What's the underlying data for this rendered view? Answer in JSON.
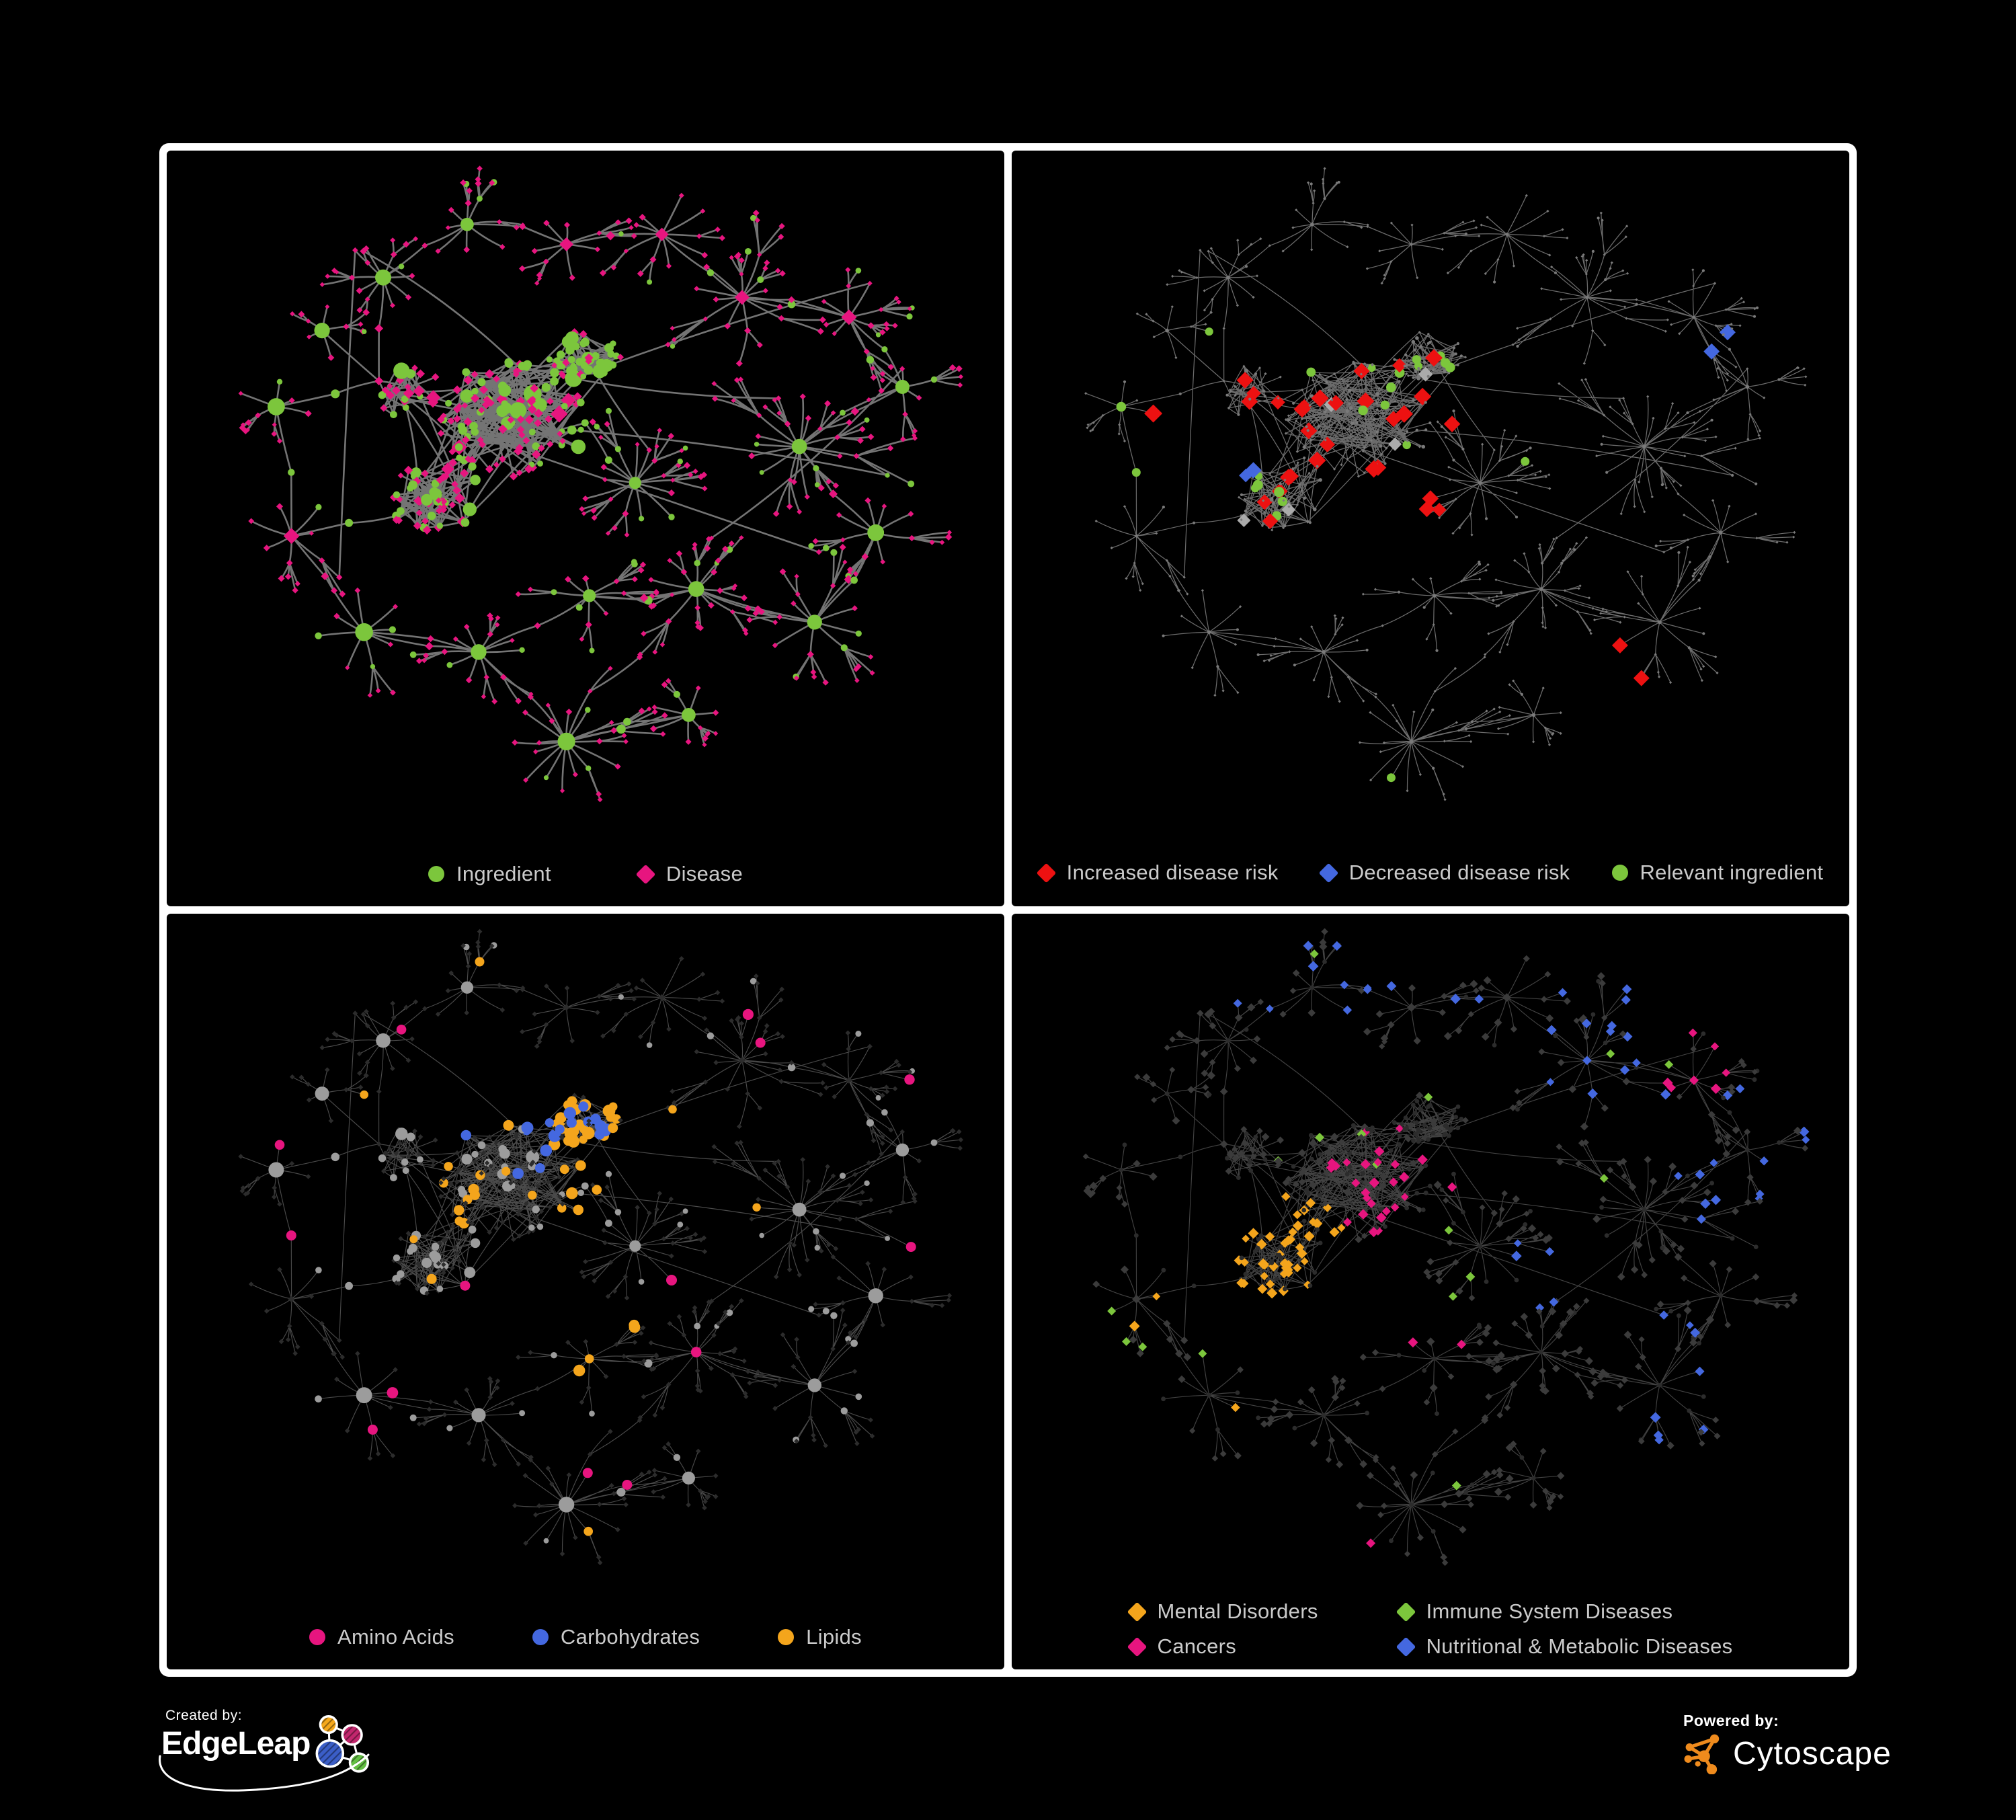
{
  "panels": [
    {
      "id": "ingredient-disease",
      "legend": [
        {
          "label": "Ingredient",
          "shape": "circle",
          "color": "#7cc63c"
        },
        {
          "label": "Disease",
          "shape": "diamond",
          "color": "#e7157f"
        }
      ]
    },
    {
      "id": "disease-risk",
      "legend": [
        {
          "label": "Increased disease risk",
          "shape": "diamond",
          "color": "#ed1111"
        },
        {
          "label": "Decreased disease risk",
          "shape": "diamond",
          "color": "#4468e0"
        },
        {
          "label": "Relevant ingredient",
          "shape": "circle",
          "color": "#7cc63c"
        }
      ]
    },
    {
      "id": "nutrient-classes",
      "legend": [
        {
          "label": "Amino Acids",
          "shape": "circle",
          "color": "#e7157f"
        },
        {
          "label": "Carbohydrates",
          "shape": "circle",
          "color": "#4468e0"
        },
        {
          "label": "Lipids",
          "shape": "circle",
          "color": "#f4a51c"
        }
      ]
    },
    {
      "id": "disease-classes",
      "legend": [
        {
          "label": "Mental Disorders",
          "shape": "diamond",
          "color": "#f4a51c"
        },
        {
          "label": "Immune System Diseases",
          "shape": "diamond",
          "color": "#7cc63c"
        },
        {
          "label": "Cancers",
          "shape": "diamond",
          "color": "#e7157f"
        },
        {
          "label": "Nutritional & Metabolic Diseases",
          "shape": "diamond",
          "color": "#4468e0"
        }
      ]
    }
  ],
  "footer": {
    "created_by_label": "Created by:",
    "created_by_brand": "EdgeLeap",
    "powered_by_label": "Powered by:",
    "powered_by_brand": "Cytoscape"
  },
  "colors": {
    "background": "#000000",
    "frame": "#ffffff",
    "legend_text": "#cbcbcb",
    "green": "#7cc63c",
    "pink": "#e7157f",
    "red": "#ed1111",
    "blue": "#4468e0",
    "orange": "#f4a51c",
    "silver": "#ababab",
    "gray": "#9c9c9c",
    "dim": "#7a7a7a",
    "dark1": "#3b3b3b",
    "dark2": "#2c2c2c",
    "edge1": "#7a7a7a",
    "edge2": "#7e7e7e",
    "edge3": "#575757",
    "edge4": "#4d4d4d",
    "cytoscape_orange": "#ef8b1d",
    "edgeleap_orange": "#f5a81c",
    "edgeleap_magenta": "#c2266d",
    "edgeleap_blue": "#3b5ec7",
    "edgeleap_green": "#63bf43"
  }
}
